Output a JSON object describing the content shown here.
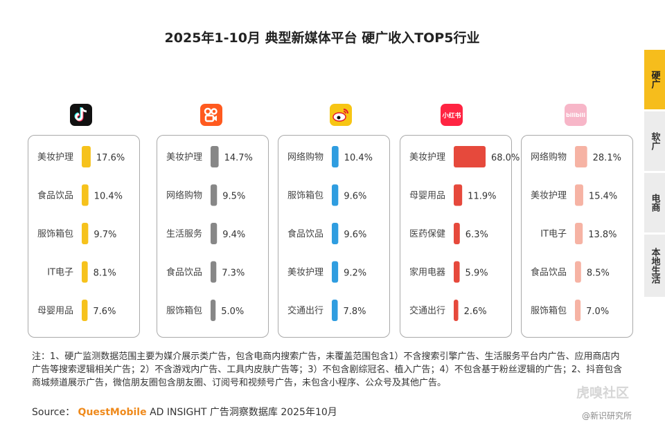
{
  "title": "2025年1-10月 典型新媒体平台 硬广收入TOP5行业",
  "side_tabs": [
    "硬广",
    "软广",
    "电商",
    "本地生活"
  ],
  "logos": {
    "xiaohongshu": "小红书",
    "bilibili": "bilibili"
  },
  "chart_data": [
    {
      "type": "bar",
      "platform_icon": "douyin-icon",
      "color": "#f6c21c",
      "categories": [
        "美妆护理",
        "食品饮品",
        "服饰箱包",
        "IT电子",
        "母婴用品"
      ],
      "values": [
        17.6,
        10.4,
        9.7,
        8.1,
        7.6
      ],
      "labels": [
        "17.6%",
        "10.4%",
        "9.7%",
        "8.1%",
        "7.6%"
      ]
    },
    {
      "type": "bar",
      "platform_icon": "kuaishou-icon",
      "color": "#878787",
      "categories": [
        "美妆护理",
        "网络购物",
        "生活服务",
        "食品饮品",
        "服饰箱包"
      ],
      "values": [
        14.7,
        9.5,
        9.4,
        7.3,
        5.0
      ],
      "labels": [
        "14.7%",
        "9.5%",
        "9.4%",
        "7.3%",
        "5.0%"
      ]
    },
    {
      "type": "bar",
      "platform_icon": "weibo-icon",
      "color": "#2f9de0",
      "categories": [
        "网络购物",
        "服饰箱包",
        "食品饮品",
        "美妆护理",
        "交通出行"
      ],
      "values": [
        10.4,
        9.6,
        9.6,
        9.2,
        7.8
      ],
      "labels": [
        "10.4%",
        "9.6%",
        "9.6%",
        "9.2%",
        "7.8%"
      ]
    },
    {
      "type": "bar",
      "platform_icon": "xiaohongshu-icon",
      "color": "#e6493c",
      "categories": [
        "美妆护理",
        "母婴用品",
        "医药保健",
        "家用电器",
        "交通出行"
      ],
      "values": [
        68.0,
        11.9,
        6.3,
        5.9,
        2.6
      ],
      "labels": [
        "68.0%",
        "11.9%",
        "6.3%",
        "5.9%",
        "2.6%"
      ]
    },
    {
      "type": "bar",
      "platform_icon": "bilibili-icon",
      "color": "#f6b3a4",
      "categories": [
        "网络购物",
        "美妆护理",
        "IT电子",
        "食品饮品",
        "服饰箱包"
      ],
      "values": [
        28.1,
        15.4,
        13.8,
        8.5,
        7.0
      ],
      "labels": [
        "28.1%",
        "15.4%",
        "13.8%",
        "8.5%",
        "7.0%"
      ]
    }
  ],
  "note": "注：1、硬广监测数据范围主要为媒介展示类广告，包含电商内搜索广告，未覆盖范围包含1）不含搜索引擎广告、生活服务平台内广告、应用商店内广告等搜索逻辑相关广告；2）不含游戏内广告、工具内皮肤广告等；3）不包含剧综冠名、植入广告；4）不包含基于粉丝逻辑的广告；2、抖音包含商城频道展示广告，微信朋友圈包含朋友圈、订阅号和视频号广告，未包含小程序、公众号及其他广告。",
  "source": {
    "prefix": "Source：",
    "brand": "QuestMobile",
    "rest": "AD INSIGHT 广告洞察数据库 2025年10月"
  },
  "watermark_1": "虎嗅社区",
  "watermark_2": "@新识研究所"
}
